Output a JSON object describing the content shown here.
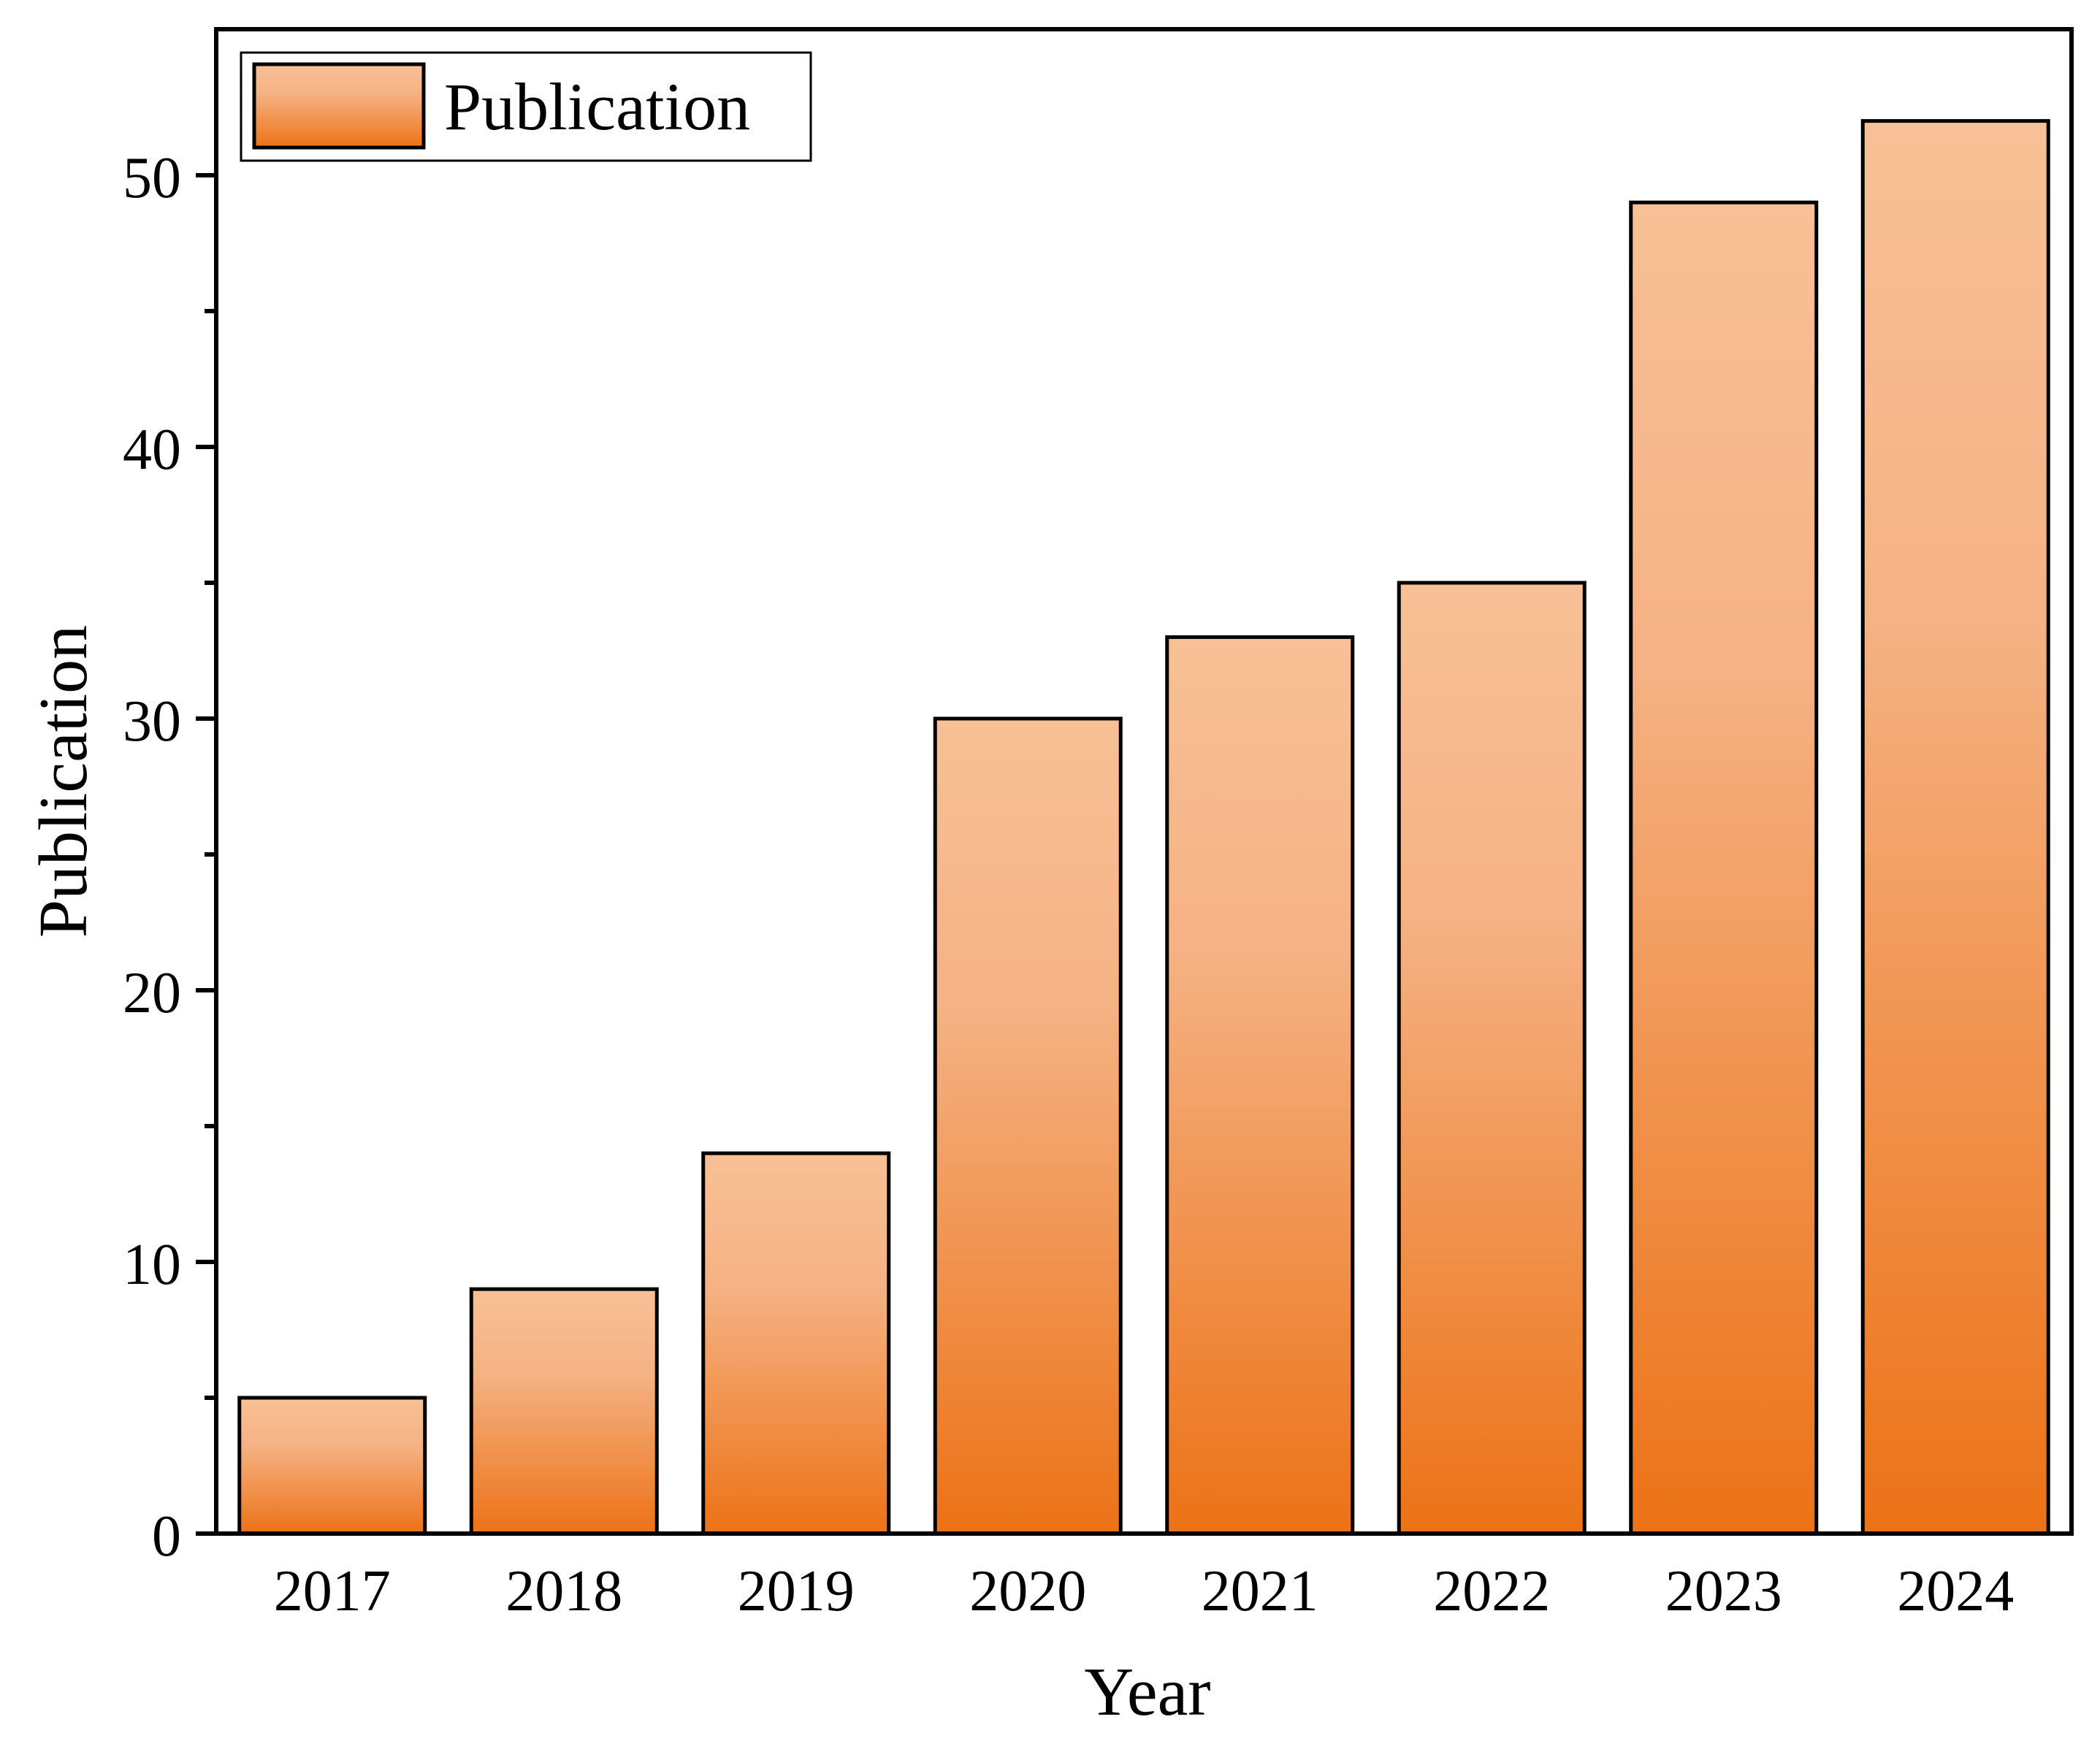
{
  "chart_data": {
    "type": "bar",
    "title": "",
    "xlabel": "Year",
    "ylabel": "Publication",
    "categories": [
      "2017",
      "2018",
      "2019",
      "2020",
      "2021",
      "2022",
      "2023",
      "2024"
    ],
    "series": [
      {
        "name": "Publication",
        "values": [
          5,
          9,
          14,
          30,
          33,
          35,
          49,
          52
        ]
      }
    ],
    "ylim": [
      0,
      55
    ],
    "yticks": [
      "0",
      "10",
      "20",
      "30",
      "40",
      "50"
    ],
    "grid": false,
    "legend_position": "top-left",
    "colors": {
      "bar_top": "#F8C096",
      "bar_bottom": "#EC7216",
      "bar_stroke": "#000000"
    }
  }
}
